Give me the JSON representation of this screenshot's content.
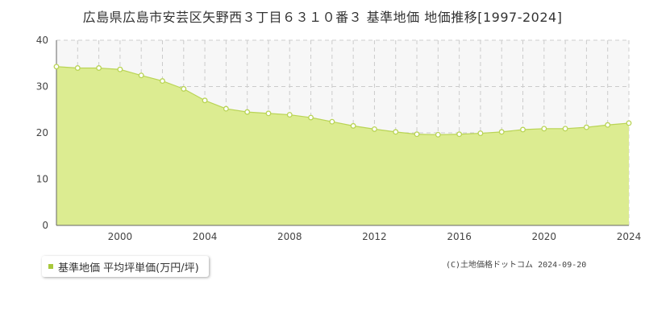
{
  "chart_data": {
    "type": "area",
    "title": "広島県広島市安芸区矢野西３丁目６３１０番３ 基準地価 地価推移[1997-2024]",
    "xlabel": "",
    "ylabel": "",
    "xlim": [
      1997,
      2024
    ],
    "ylim": [
      0,
      40
    ],
    "x_ticks": [
      2000,
      2004,
      2008,
      2012,
      2016,
      2020,
      2024
    ],
    "y_ticks": [
      0,
      10,
      20,
      30,
      40
    ],
    "grid": true,
    "legend_position": "bottom-left",
    "series": [
      {
        "name": "基準地価 平均坪単価(万円/坪)",
        "x": [
          1997,
          1998,
          1999,
          2000,
          2001,
          2002,
          2003,
          2004,
          2005,
          2006,
          2007,
          2008,
          2009,
          2010,
          2011,
          2012,
          2013,
          2014,
          2015,
          2016,
          2017,
          2018,
          2019,
          2020,
          2021,
          2022,
          2023,
          2024
        ],
        "values": [
          34.3,
          34.0,
          34.0,
          33.7,
          32.4,
          31.2,
          29.5,
          27.0,
          25.2,
          24.5,
          24.2,
          23.9,
          23.3,
          22.4,
          21.5,
          20.8,
          20.2,
          19.7,
          19.6,
          19.7,
          19.9,
          20.2,
          20.7,
          20.9,
          20.9,
          21.2,
          21.7,
          22.1
        ]
      }
    ],
    "colors": {
      "area_fill": "#dcec91",
      "line": "#b9d455",
      "marker_stroke": "#b9d455",
      "marker_fill": "#ffffff",
      "legend_marker": "#a8c83c",
      "grid": "#cccccc",
      "plot_background_upper": "#f7f7f7"
    }
  },
  "legend": {
    "label": "基準地価 平均坪単価(万円/坪)"
  },
  "footer": {
    "copyright": "(C)土地価格ドットコム 2024-09-20"
  }
}
